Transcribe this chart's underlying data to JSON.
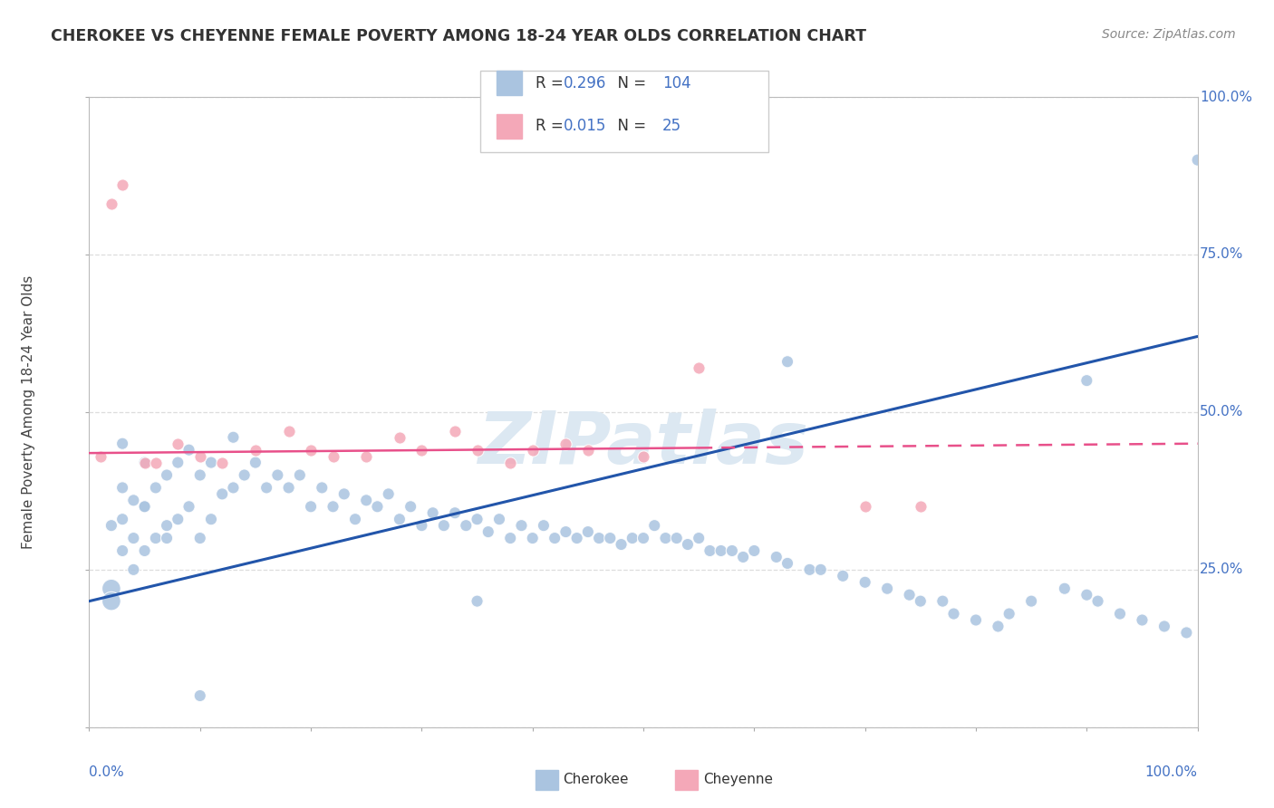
{
  "title": "CHEROKEE VS CHEYENNE FEMALE POVERTY AMONG 18-24 YEAR OLDS CORRELATION CHART",
  "source": "Source: ZipAtlas.com",
  "ylabel": "Female Poverty Among 18-24 Year Olds",
  "xlim": [
    0,
    100
  ],
  "ylim": [
    0,
    100
  ],
  "cherokee_R": 0.296,
  "cherokee_N": 104,
  "cheyenne_R": 0.015,
  "cheyenne_N": 25,
  "cherokee_color": "#aac4e0",
  "cheyenne_color": "#f4a8b8",
  "cherokee_line_color": "#2255aa",
  "cheyenne_line_color": "#e8508a",
  "watermark_color": "#e0e8f0",
  "background_color": "#ffffff",
  "grid_color": "#dddddd",
  "blue_line_y0": 20.0,
  "blue_line_y1": 62.0,
  "pink_line_y0": 43.5,
  "pink_line_y1": 45.0,
  "pink_solid_end": 55,
  "cherokee_x": [
    2,
    2,
    3,
    3,
    3,
    4,
    4,
    4,
    5,
    5,
    5,
    6,
    6,
    7,
    7,
    8,
    8,
    9,
    9,
    10,
    10,
    11,
    11,
    12,
    13,
    13,
    14,
    15,
    16,
    17,
    18,
    19,
    20,
    21,
    22,
    23,
    24,
    25,
    26,
    27,
    28,
    29,
    30,
    31,
    32,
    33,
    34,
    35,
    36,
    37,
    38,
    39,
    40,
    41,
    42,
    43,
    44,
    45,
    46,
    47,
    48,
    49,
    50,
    51,
    52,
    53,
    54,
    55,
    56,
    57,
    58,
    59,
    60,
    62,
    63,
    65,
    66,
    68,
    70,
    72,
    74,
    75,
    77,
    78,
    80,
    82,
    83,
    85,
    88,
    90,
    91,
    93,
    95,
    97,
    99,
    100,
    2,
    3,
    5,
    7,
    10,
    35,
    63,
    90
  ],
  "cherokee_y": [
    22,
    32,
    28,
    33,
    38,
    25,
    30,
    36,
    28,
    35,
    42,
    30,
    38,
    32,
    40,
    33,
    42,
    35,
    44,
    30,
    40,
    33,
    42,
    37,
    38,
    46,
    40,
    42,
    38,
    40,
    38,
    40,
    35,
    38,
    35,
    37,
    33,
    36,
    35,
    37,
    33,
    35,
    32,
    34,
    32,
    34,
    32,
    33,
    31,
    33,
    30,
    32,
    30,
    32,
    30,
    31,
    30,
    31,
    30,
    30,
    29,
    30,
    30,
    32,
    30,
    30,
    29,
    30,
    28,
    28,
    28,
    27,
    28,
    27,
    26,
    25,
    25,
    24,
    23,
    22,
    21,
    20,
    20,
    18,
    17,
    16,
    18,
    20,
    22,
    21,
    20,
    18,
    17,
    16,
    15,
    90,
    20,
    45,
    35,
    30,
    5,
    20,
    58,
    55
  ],
  "cheyenne_x": [
    1,
    2,
    3,
    5,
    6,
    8,
    10,
    12,
    15,
    18,
    20,
    22,
    25,
    28,
    30,
    33,
    35,
    38,
    40,
    43,
    45,
    50,
    55,
    70,
    75
  ],
  "cheyenne_y": [
    43,
    83,
    86,
    42,
    42,
    45,
    43,
    42,
    44,
    47,
    44,
    43,
    43,
    46,
    44,
    47,
    44,
    42,
    44,
    45,
    44,
    43,
    57,
    35,
    35
  ]
}
